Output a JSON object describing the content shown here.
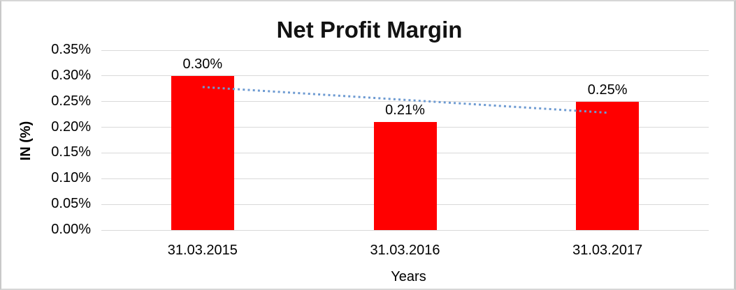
{
  "chart_data": {
    "type": "bar",
    "title": "Net Profit Margin",
    "categories": [
      "31.03.2015",
      "31.03.2016",
      "31.03.2017"
    ],
    "values": [
      0.3,
      0.21,
      0.25
    ],
    "data_labels": [
      "0.30%",
      "0.21%",
      "0.25%"
    ],
    "xlabel": "Years",
    "ylabel": "IN (%)",
    "ylim": [
      0,
      0.35
    ],
    "yticks": [
      {
        "value": 0.35,
        "label": "0.35%"
      },
      {
        "value": 0.3,
        "label": "0.30%"
      },
      {
        "value": 0.25,
        "label": "0.25%"
      },
      {
        "value": 0.2,
        "label": "0.20%"
      },
      {
        "value": 0.15,
        "label": "0.15%"
      },
      {
        "value": 0.1,
        "label": "0.10%"
      },
      {
        "value": 0.05,
        "label": "0.05%"
      },
      {
        "value": 0.0,
        "label": "0.00%"
      }
    ],
    "grid": true,
    "legend": "none",
    "colors": {
      "bar": "#ff0000",
      "gridline": "#d9d9d9",
      "trendline": "#6e9bd2",
      "text": "#000000"
    },
    "trendline": {
      "type": "linear",
      "style": "dotted",
      "start_value": 0.2783,
      "end_value": 0.2283
    }
  }
}
